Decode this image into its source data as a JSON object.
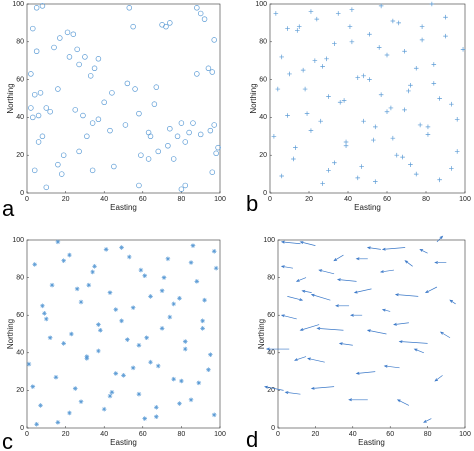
{
  "chart_data": [
    {
      "type": "scatter",
      "panel_label": "a",
      "xlabel": "Easting",
      "ylabel": "Northing",
      "marker": "o",
      "color": "#5b9bd5",
      "xlim": [
        0,
        100
      ],
      "ylim": [
        0,
        100
      ],
      "xticks": [
        0,
        20,
        40,
        60,
        80,
        100
      ],
      "yticks": [
        0,
        20,
        40,
        60,
        80,
        100
      ],
      "x": [
        5,
        8,
        3,
        2,
        4,
        7,
        3,
        6,
        10,
        12,
        8,
        6,
        4,
        10,
        14,
        17,
        21,
        24,
        26,
        22,
        16,
        19,
        18,
        16,
        27,
        30,
        33,
        35,
        37,
        29,
        25,
        31,
        37,
        34,
        27,
        34,
        40,
        44,
        43,
        45,
        53,
        55,
        52,
        51,
        56,
        58,
        59,
        63,
        64,
        66,
        67,
        68,
        70,
        74,
        72,
        74,
        73,
        76,
        78,
        80,
        82,
        80,
        82,
        84,
        86,
        88,
        88,
        90,
        92,
        94,
        96,
        97,
        95,
        97,
        99,
        98,
        96,
        90,
        63,
        58,
        5,
        2
      ],
      "y": [
        98,
        99,
        87,
        63,
        52,
        53,
        40,
        41,
        45,
        43,
        30,
        27,
        12,
        3,
        77,
        82,
        85,
        84,
        76,
        72,
        55,
        20,
        10,
        15,
        68,
        72,
        62,
        66,
        71,
        41,
        44,
        30,
        39,
        37,
        22,
        12,
        48,
        53,
        33,
        14,
        98,
        88,
        58,
        36,
        55,
        42,
        20,
        18,
        30,
        47,
        56,
        22,
        89,
        90,
        88,
        34,
        25,
        18,
        30,
        2,
        4,
        37,
        27,
        32,
        37,
        63,
        98,
        95,
        92,
        66,
        64,
        81,
        33,
        36,
        24,
        21,
        11,
        31,
        32,
        4,
        75,
        45
      ]
    },
    {
      "type": "scatter",
      "panel_label": "b",
      "xlabel": "Easting",
      "ylabel": "Northing",
      "marker": "+",
      "color": "#5b9bd5",
      "xlim": [
        0,
        100
      ],
      "ylim": [
        0,
        100
      ],
      "xticks": [
        0,
        20,
        40,
        60,
        80,
        100
      ],
      "yticks": [
        0,
        20,
        40,
        60,
        80,
        100
      ],
      "x": [
        3,
        6,
        9,
        12,
        15,
        18,
        21,
        24,
        27,
        30,
        33,
        36,
        39,
        42,
        45,
        48,
        51,
        54,
        57,
        60,
        63,
        66,
        69,
        72,
        75,
        78,
        81,
        84,
        87,
        90,
        93,
        96,
        2,
        6,
        10,
        14,
        19,
        23,
        27,
        30,
        35,
        39,
        42,
        47,
        51,
        54,
        57,
        62,
        65,
        69,
        72,
        75,
        78,
        81,
        84,
        87,
        90,
        93,
        96,
        99,
        4,
        9,
        13,
        17,
        21,
        26,
        29,
        33,
        38,
        41,
        45,
        48,
        53,
        56,
        60,
        63,
        68,
        71,
        77,
        83
      ],
      "y": [
        95,
        72,
        41,
        18,
        88,
        55,
        33,
        92,
        67,
        12,
        79,
        48,
        25,
        97,
        61,
        38,
        84,
        6,
        52,
        73,
        29,
        90,
        44,
        15,
        66,
        81,
        35,
        58,
        7,
        93,
        47,
        22,
        30,
        9,
        63,
        86,
        42,
        70,
        5,
        51,
        95,
        27,
        80,
        14,
        60,
        35,
        99,
        45,
        20,
        75,
        57,
        10,
        88,
        31,
        68,
        50,
        83,
        13,
        39,
        76,
        55,
        87,
        24,
        65,
        96,
        38,
        71,
        16,
        49,
        88,
        8,
        62,
        28,
        77,
        43,
        91,
        19,
        54,
        36,
        100
      ]
    },
    {
      "type": "scatter",
      "panel_label": "c",
      "xlabel": "Easting",
      "ylabel": "Northing",
      "marker": "*",
      "color": "#5b9bd5",
      "xlim": [
        0,
        100
      ],
      "ylim": [
        0,
        100
      ],
      "xticks": [
        0,
        20,
        40,
        60,
        80,
        100
      ],
      "yticks": [
        0,
        20,
        40,
        60,
        80,
        100
      ],
      "x": [
        1,
        4,
        7,
        10,
        13,
        16,
        19,
        22,
        25,
        28,
        31,
        34,
        37,
        40,
        43,
        46,
        49,
        52,
        55,
        58,
        61,
        64,
        67,
        70,
        73,
        76,
        79,
        82,
        85,
        88,
        91,
        94,
        97,
        3,
        8,
        12,
        16,
        22,
        26,
        31,
        35,
        38,
        43,
        46,
        50,
        53,
        58,
        61,
        64,
        68,
        71,
        74,
        79,
        82,
        86,
        89,
        92,
        95,
        98,
        5,
        9,
        15,
        19,
        23,
        28,
        32,
        37,
        41,
        44,
        49,
        55,
        59,
        62,
        67,
        70,
        76,
        80,
        85,
        91,
        97
      ],
      "y": [
        34,
        87,
        12,
        58,
        76,
        3,
        45,
        92,
        21,
        67,
        38,
        83,
        55,
        10,
        72,
        29,
        96,
        47,
        64,
        18,
        81,
        35,
        6,
        53,
        90,
        26,
        69,
        42,
        15,
        78,
        57,
        31,
        94,
        22,
        65,
        48,
        99,
        8,
        74,
        37,
        86,
        52,
        17,
        63,
        28,
        91,
        44,
        5,
        70,
        33,
        80,
        59,
        13,
        46,
        97,
        24,
        68,
        39,
        85,
        2,
        61,
        27,
        89,
        50,
        14,
        76,
        41,
        95,
        19,
        57,
        32,
        84,
        48,
        11,
        73,
        66,
        25,
        88,
        53,
        7
      ]
    },
    {
      "type": "quiver",
      "panel_label": "d",
      "xlabel": "Easting",
      "ylabel": "Northing",
      "color": "#3a78c8",
      "xlim": [
        0,
        100
      ],
      "ylim": [
        0,
        100
      ],
      "xticks": [
        0,
        20,
        40,
        60,
        80,
        100
      ],
      "yticks": [
        0,
        20,
        40,
        60,
        80,
        100
      ],
      "x": [
        12,
        20,
        35,
        48,
        55,
        68,
        80,
        85,
        8,
        15,
        30,
        42,
        62,
        72,
        90,
        5,
        18,
        28,
        38,
        50,
        60,
        75,
        85,
        95,
        10,
        22,
        35,
        45,
        58,
        70,
        80,
        92,
        6,
        15,
        25,
        40,
        52,
        65,
        78,
        88,
        3,
        12,
        30,
        48,
        70,
        82
      ],
      "y": [
        98,
        97,
        92,
        90,
        95,
        96,
        93,
        99,
        85,
        80,
        82,
        78,
        84,
        86,
        88,
        70,
        72,
        68,
        65,
        74,
        62,
        70,
        75,
        66,
        58,
        55,
        52,
        60,
        50,
        56,
        45,
        48,
        42,
        38,
        35,
        44,
        30,
        32,
        40,
        28,
        20,
        18,
        22,
        15,
        12,
        5
      ],
      "u": [
        -10,
        -8,
        -5,
        -6,
        -7,
        -12,
        -4,
        3,
        -6,
        -5,
        -8,
        -10,
        -7,
        -4,
        -6,
        8,
        -5,
        -10,
        -7,
        -9,
        -4,
        -12,
        -6,
        -3,
        -8,
        -10,
        -14,
        -6,
        -10,
        -8,
        -15,
        -5,
        -12,
        -6,
        -9,
        -7,
        -10,
        -8,
        -5,
        -4,
        -10,
        -8,
        -12,
        -10,
        -6,
        -4
      ],
      "v": [
        1,
        2,
        -3,
        0,
        1,
        -1,
        2,
        3,
        1,
        -2,
        2,
        1,
        -1,
        3,
        0,
        -2,
        1,
        3,
        0,
        -2,
        1,
        1,
        -3,
        2,
        2,
        -3,
        1,
        0,
        2,
        -1,
        1,
        3,
        0,
        -2,
        2,
        1,
        -1,
        1,
        2,
        -3,
        2,
        1,
        -1,
        0,
        3,
        -2
      ]
    }
  ]
}
